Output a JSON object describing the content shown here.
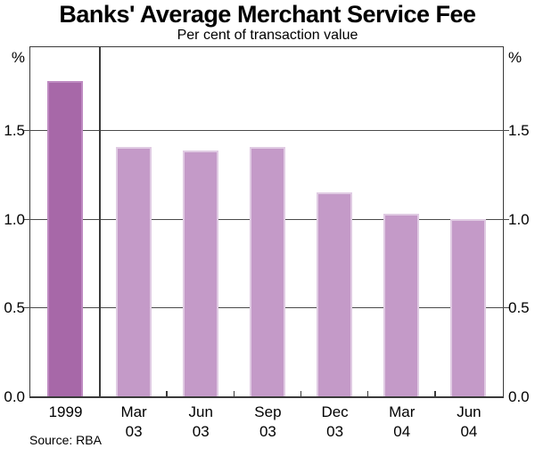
{
  "chart_data": {
    "type": "bar",
    "title": "Banks' Average Merchant Service Fee",
    "subtitle": "Per cent of transaction value",
    "unit_left": "%",
    "unit_right": "%",
    "categories": [
      "1999",
      "Mar 03",
      "Jun 03",
      "Sep 03",
      "Dec 03",
      "Mar 04",
      "Jun 04"
    ],
    "category_lines": [
      [
        "1999"
      ],
      [
        "Mar",
        "03"
      ],
      [
        "Jun",
        "03"
      ],
      [
        "Sep",
        "03"
      ],
      [
        "Dec",
        "03"
      ],
      [
        "Mar",
        "04"
      ],
      [
        "Jun",
        "04"
      ]
    ],
    "values": [
      1.78,
      1.41,
      1.39,
      1.41,
      1.15,
      1.03,
      1.0
    ],
    "ylim": [
      0,
      1.97
    ],
    "ytick_labels": [
      "0.0",
      "0.5",
      "1.0",
      "1.5"
    ],
    "ytick_values": [
      0.0,
      0.5,
      1.0,
      1.5
    ],
    "grid": "horizontal gridlines at ticks",
    "legend": "none",
    "separator_after_first_bar": true,
    "source": "Source: RBA",
    "colors": {
      "bar_first_fill": "#a768a8",
      "bar_first_edge": "#be8ac1",
      "bar_fill": "#c49ac8",
      "bar_edge": "#e0cbe3",
      "frame": "#3a3a3a",
      "grid": "#4a4a4a",
      "text": "#000000",
      "background": "#ffffff"
    }
  }
}
